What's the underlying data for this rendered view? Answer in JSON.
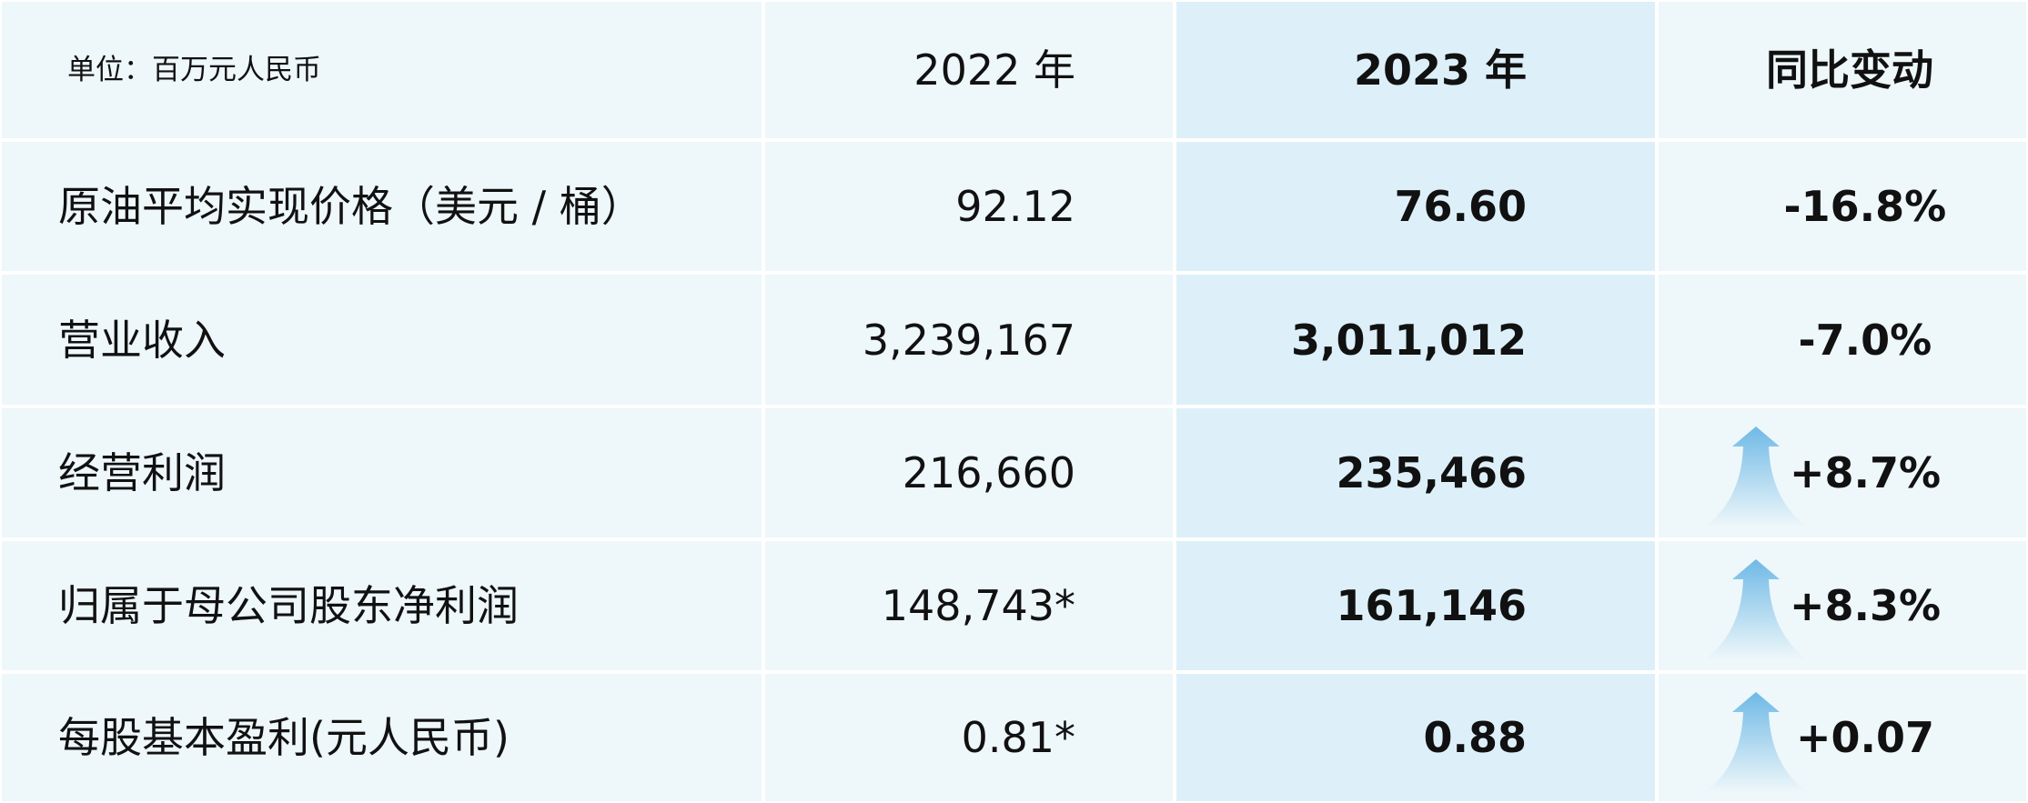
{
  "header": {
    "unit": "单位：百万元人民币",
    "col_2022": "2022 年",
    "col_2023": "2023 年",
    "col_change": "同比变动"
  },
  "table": {
    "rows": [
      [
        "原油平均实现价格（美元 / 桶）",
        "92.12",
        "76.60",
        "-16.8%"
      ],
      [
        "营业收入",
        "3,239,167",
        "3,011,012",
        "-7.0%"
      ],
      [
        "经营利润",
        "216,660",
        "235,466",
        "+8.7%"
      ],
      [
        "归属于母公司股东净利润",
        "148,743*",
        "161,146",
        "+8.3%"
      ],
      [
        "每股基本盈利(元人民币)",
        "0.81*",
        "0.88",
        "+0.07"
      ]
    ]
  }
}
